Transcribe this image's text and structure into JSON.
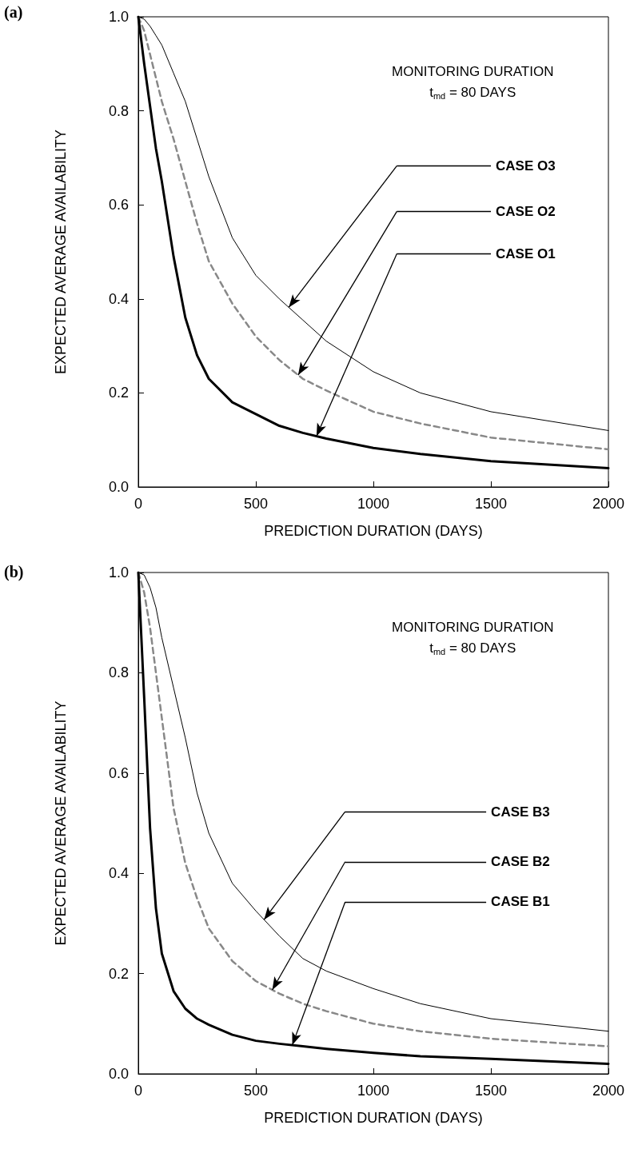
{
  "chart_data": [
    {
      "type": "line",
      "title": "(a)",
      "xlabel": "PREDICTION DURATION (DAYS)",
      "ylabel": "EXPECTED AVERAGE AVAILABILITY",
      "x": [
        0,
        25,
        50,
        75,
        100,
        150,
        200,
        250,
        300,
        400,
        500,
        600,
        700,
        800,
        1000,
        1200,
        1500,
        2000
      ],
      "series": [
        {
          "color": "#000000",
          "line_style": "solid",
          "values": [
            1.0,
            0.9,
            0.81,
            0.72,
            0.65,
            0.49,
            0.36,
            0.28,
            0.23,
            0.18,
            0.155,
            0.13,
            0.115,
            0.103,
            0.083,
            0.07,
            0.055,
            0.04
          ]
        },
        {
          "color": "#888888",
          "line_style": "dashed",
          "values": [
            1.0,
            0.97,
            0.92,
            0.87,
            0.82,
            0.74,
            0.65,
            0.56,
            0.48,
            0.39,
            0.32,
            0.27,
            0.23,
            0.205,
            0.16,
            0.135,
            0.105,
            0.08
          ]
        },
        {
          "color": "#000000",
          "line_style": "solid",
          "values": [
            1.0,
            0.995,
            0.98,
            0.96,
            0.94,
            0.88,
            0.82,
            0.74,
            0.66,
            0.53,
            0.45,
            0.4,
            0.355,
            0.31,
            0.245,
            0.2,
            0.16,
            0.12
          ]
        }
      ],
      "annotations": [
        "MONITORING DURATION\nt$_{md}$ = 80 DAYS",
        "CASE O3",
        "CASE O2",
        "CASE O1"
      ],
      "xlim": [
        0,
        2000
      ],
      "xticks": [
        0,
        500,
        1000,
        1500,
        2000
      ],
      "ylim": [
        0,
        1
      ],
      "yticks": [
        {
          "value": 0,
          "label": "0.0"
        },
        {
          "value": 0.2,
          "label": "0.2"
        },
        {
          "value": 0.4,
          "label": "0.4"
        },
        {
          "value": 0.6,
          "label": "0.6"
        },
        {
          "value": 0.8,
          "label": "0.8"
        },
        {
          "value": 1,
          "label": "1.0"
        }
      ],
      "grid": false,
      "marker": "none"
    },
    {
      "type": "line",
      "title": "(b)",
      "xlabel": "PREDICTION DURATION (DAYS)",
      "ylabel": "EXPECTED AVERAGE AVAILABILITY",
      "x": [
        0,
        25,
        50,
        75,
        100,
        150,
        200,
        250,
        300,
        400,
        500,
        600,
        700,
        800,
        1000,
        1200,
        1500,
        2000
      ],
      "series": [
        {
          "color": "#000000",
          "line_style": "solid",
          "values": [
            1.0,
            0.75,
            0.49,
            0.33,
            0.24,
            0.165,
            0.13,
            0.11,
            0.098,
            0.078,
            0.066,
            0.06,
            0.055,
            0.05,
            0.042,
            0.035,
            0.03,
            0.02
          ]
        },
        {
          "color": "#888888",
          "line_style": "dashed",
          "values": [
            1.0,
            0.96,
            0.89,
            0.8,
            0.71,
            0.53,
            0.42,
            0.35,
            0.29,
            0.225,
            0.185,
            0.16,
            0.14,
            0.125,
            0.1,
            0.085,
            0.07,
            0.055
          ]
        },
        {
          "color": "#000000",
          "line_style": "solid",
          "values": [
            1.0,
            0.995,
            0.97,
            0.93,
            0.87,
            0.77,
            0.67,
            0.56,
            0.48,
            0.38,
            0.325,
            0.275,
            0.23,
            0.205,
            0.17,
            0.14,
            0.11,
            0.085
          ]
        }
      ],
      "annotations": [
        "MONITORING DURATION\nt$_{md}$ = 80 DAYS",
        "CASE B3",
        "CASE B2",
        "CASE B1"
      ],
      "xlim": [
        0,
        2000
      ],
      "xticks": [
        0,
        500,
        1000,
        1500,
        2000
      ],
      "ylim": [
        0,
        1
      ],
      "yticks": [
        {
          "value": 0,
          "label": "0.0"
        },
        {
          "value": 0.2,
          "label": "0.2"
        },
        {
          "value": 0.4,
          "label": "0.4"
        },
        {
          "value": 0.6,
          "label": "0.6"
        },
        {
          "value": 0.8,
          "label": "0.8"
        },
        {
          "value": 1,
          "label": "1.0"
        }
      ],
      "grid": false,
      "marker": "none"
    }
  ]
}
